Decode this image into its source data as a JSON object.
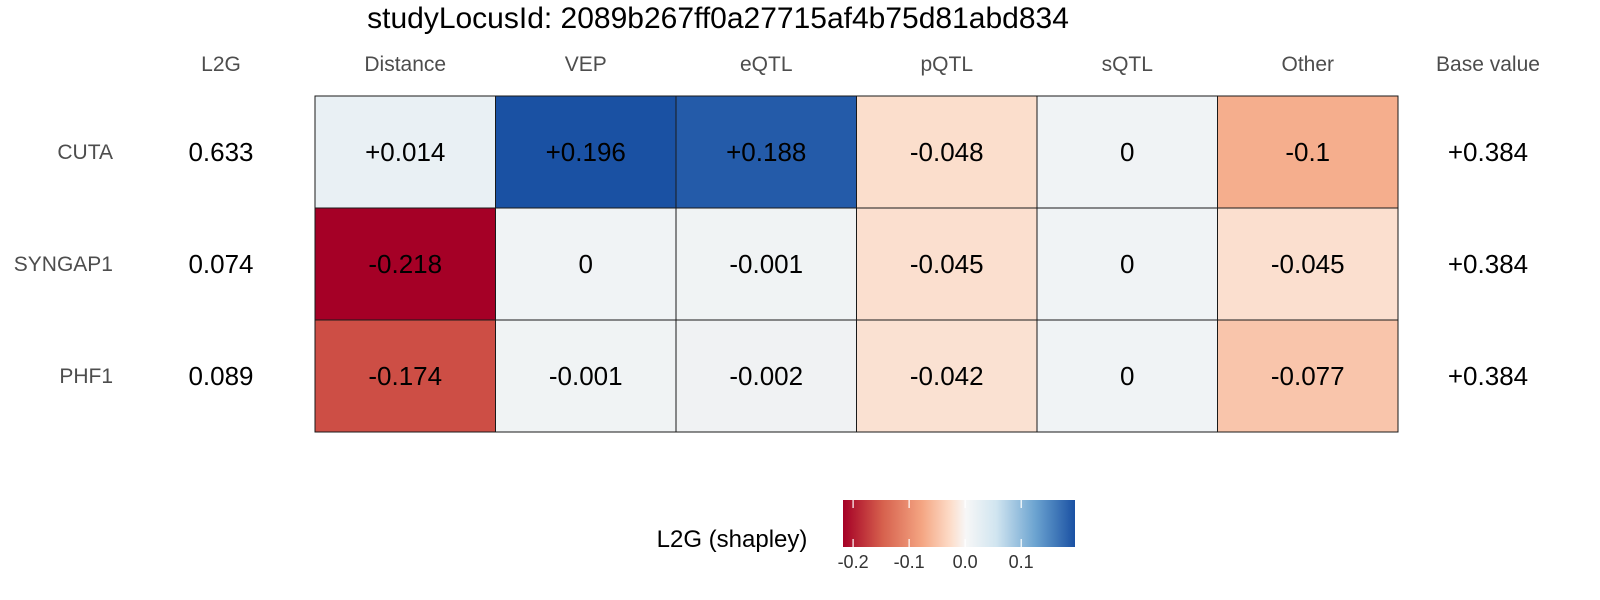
{
  "chart_data": {
    "type": "heatmap",
    "title": "studyLocusId: 2089b267ff0a27715af4b75d81abd834",
    "columns": [
      "Distance",
      "VEP",
      "eQTL",
      "pQTL",
      "sQTL",
      "Other"
    ],
    "l2g_header": "L2G",
    "base_header": "Base value",
    "rows": [
      {
        "gene": "CUTA",
        "l2g": "0.633",
        "base": "+0.384",
        "values": [
          0.014,
          0.196,
          0.188,
          -0.048,
          0,
          -0.1
        ],
        "labels": [
          "+0.014",
          "+0.196",
          "+0.188",
          "-0.048",
          "0",
          "-0.1"
        ]
      },
      {
        "gene": "SYNGAP1",
        "l2g": "0.074",
        "base": "+0.384",
        "values": [
          -0.218,
          0,
          -0.001,
          -0.045,
          0,
          -0.045
        ],
        "labels": [
          "-0.218",
          "0",
          "-0.001",
          "-0.045",
          "0",
          "-0.045"
        ]
      },
      {
        "gene": "PHF1",
        "l2g": "0.089",
        "base": "+0.384",
        "values": [
          -0.174,
          -0.001,
          -0.002,
          -0.042,
          0,
          -0.077
        ],
        "labels": [
          "-0.174",
          "-0.001",
          "-0.002",
          "-0.042",
          "0",
          "-0.077"
        ]
      }
    ],
    "legend": {
      "title": "L2G (shapley)",
      "range": [
        -0.218,
        0.196
      ],
      "ticks": [
        -0.2,
        -0.1,
        0.0,
        0.1
      ],
      "tick_labels": [
        "-0.2",
        "-0.1",
        "0.0",
        "0.1"
      ],
      "colors": {
        "negative": "#A50026",
        "neutral": "#F0F0F0",
        "positive": "#1A51A3"
      }
    }
  }
}
